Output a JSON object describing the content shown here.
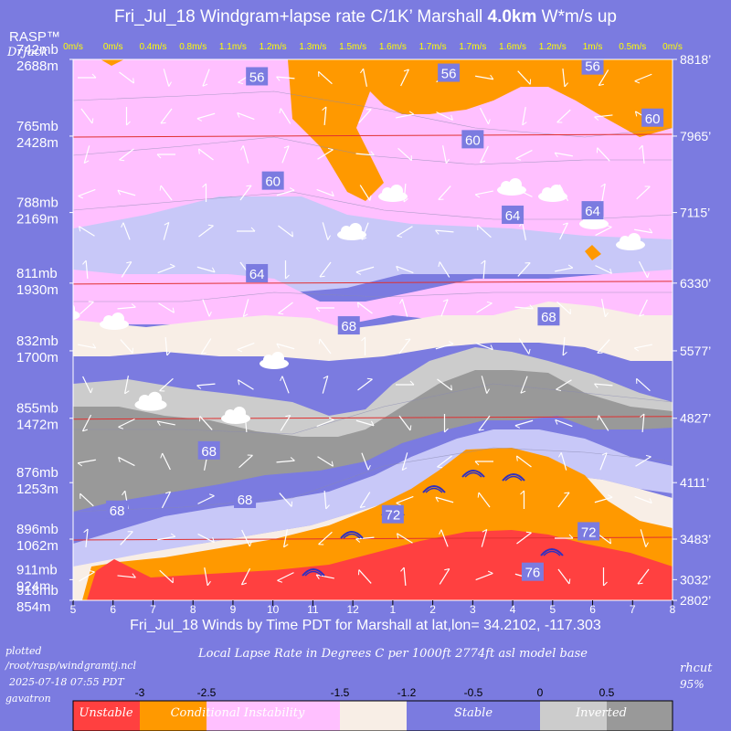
{
  "header": {
    "title_prefix": "Fri_Jul_18 Windgram+lapse rate C/1K’  Marshall ",
    "title_height": "4.0km",
    "title_suffix": "  W*m/s up",
    "logo": "RASP™",
    "author": "DrJack"
  },
  "footer": {
    "plotted_label": "plotted",
    "script_path": "/root/rasp/windgramtj.ncl",
    "plot_datetime": "2025-07-18 07:55 PDT",
    "machine": "gavatron",
    "model_name": "rhcut",
    "model_pct": "95%",
    "legend_title": "Local Lapse Rate in Degrees C per 1000ft  2774ft asl model base"
  },
  "colors": {
    "background": "#7b7be0",
    "unstable": "#ff4040",
    "conditional": "#ff9900",
    "instability": "#ffc0ff",
    "near_neutral": "#f8eee6",
    "stable": "#c8c8f8",
    "stable_deep": "#7b7be0",
    "inverted_light": "#cccccc",
    "inverted": "#999999",
    "wind_barb": "#ffffff",
    "wstar_text": "#ffff00",
    "isotherm": "#e03030"
  },
  "chart_data": {
    "type": "heatmap",
    "title": "Fri_Jul_18 Windgram+lapse rate C/1K’  Marshall 4.0km  W*m/s up",
    "xlabel": "Fri_Jul_18 Winds by Time PDT for Marshall at lat,lon= 34.2102, -117.303",
    "x_ticks": [
      "5",
      "6",
      "7",
      "8",
      "9",
      "10",
      "11",
      "12",
      "1",
      "2",
      "3",
      "4",
      "5",
      "6",
      "7",
      "8"
    ],
    "wstar_label": [
      "0m/s",
      "0m/s",
      "0.4m/s",
      "0.8m/s",
      "1.1m/s",
      "1.2m/s",
      "1.3m/s",
      "1.5m/s",
      "1.6m/s",
      "1.7m/s",
      "1.7m/s",
      "1.6m/s",
      "1.2m/s",
      "1m/s",
      "0.5m/s",
      "0m/s"
    ],
    "pressure_levels": [
      "742mb",
      "765mb",
      "788mb",
      "811mb",
      "832mb",
      "855mb",
      "876mb",
      "896mb",
      "911mb",
      "918mb"
    ],
    "height_levels_m": [
      "2688m",
      "2428m",
      "2169m",
      "1930m",
      "1700m",
      "1472m",
      "1253m",
      "1062m",
      "924m",
      "854m"
    ],
    "height_levels_ft": [
      "8818’",
      "7965’",
      "7115’",
      "6330’",
      "5577’",
      "4827’",
      "4111’",
      "3483’",
      "3032’",
      "2802’"
    ],
    "temperature_labels_F": [
      {
        "text": "56",
        "time": 9.6,
        "ft": 8620
      },
      {
        "text": "56",
        "time": 14.4,
        "ft": 8660
      },
      {
        "text": "56",
        "time": 18.0,
        "ft": 8740
      },
      {
        "text": "60",
        "time": 10.0,
        "ft": 7460
      },
      {
        "text": "60",
        "time": 15.0,
        "ft": 7920
      },
      {
        "text": "60",
        "time": 19.5,
        "ft": 8160
      },
      {
        "text": "64",
        "time": 9.6,
        "ft": 6430
      },
      {
        "text": "64",
        "time": 16.0,
        "ft": 7080
      },
      {
        "text": "64",
        "time": 18.0,
        "ft": 7130
      },
      {
        "text": "68",
        "time": 11.9,
        "ft": 5850
      },
      {
        "text": "68",
        "time": 16.9,
        "ft": 5950
      },
      {
        "text": "68",
        "time": 8.4,
        "ft": 4460
      },
      {
        "text": "68",
        "time": 9.3,
        "ft": 3920
      },
      {
        "text": "68",
        "time": 6.1,
        "ft": 3800
      },
      {
        "text": "72",
        "time": 13.0,
        "ft": 3750
      },
      {
        "text": "72",
        "time": 17.9,
        "ft": 3560
      },
      {
        "text": "76",
        "time": 16.5,
        "ft": 3110
      }
    ],
    "legend": {
      "tick_values": [
        "-3",
        "-2.5",
        "-1.5",
        "-1.2",
        "-0.5",
        "0",
        "0.5"
      ],
      "categories": [
        "Unstable",
        "Conditional Instability",
        "Stable",
        "Inverted"
      ]
    }
  }
}
